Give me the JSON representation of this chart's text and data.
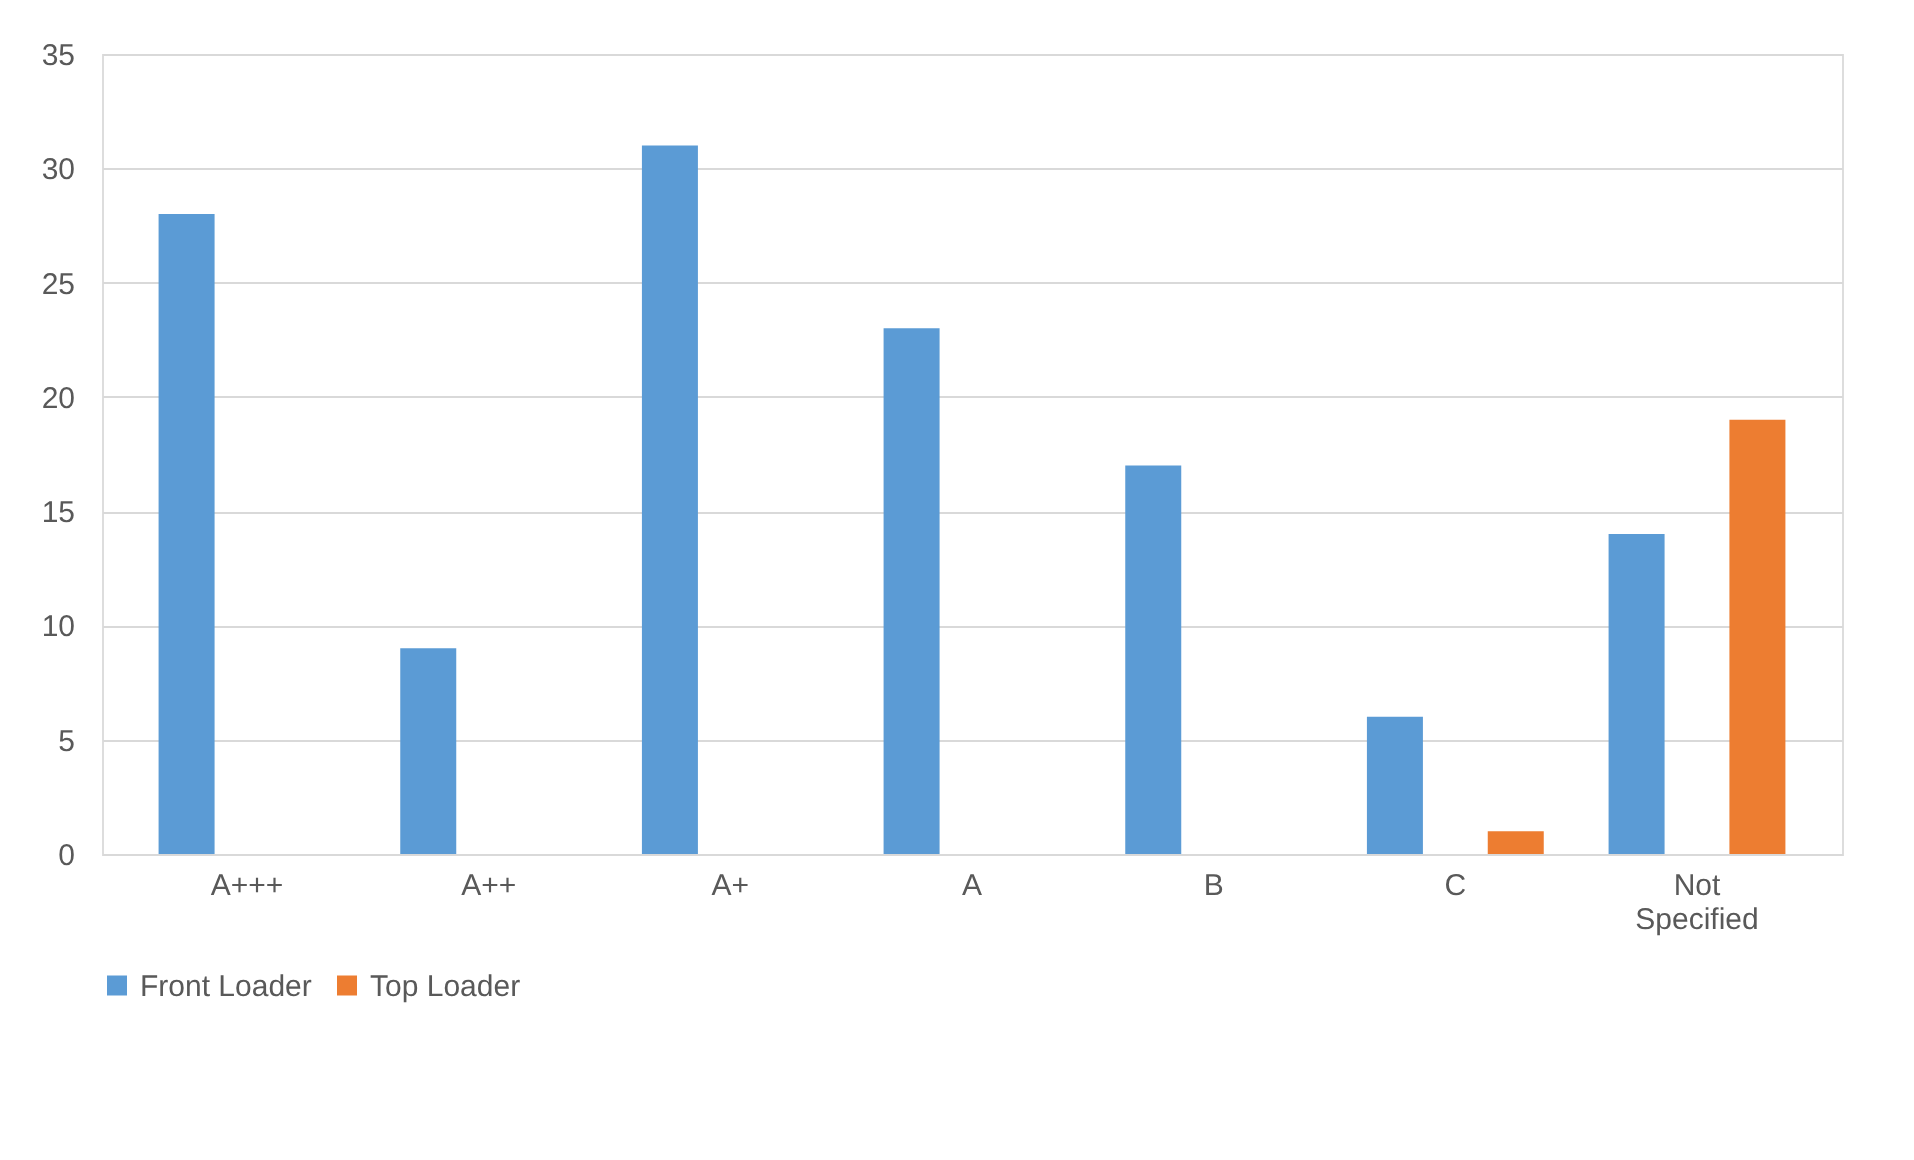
{
  "chart_data": {
    "type": "bar",
    "categories": [
      "A+++",
      "A++",
      "A+",
      "A",
      "B",
      "C",
      "Not Specified"
    ],
    "series": [
      {
        "name": "Front Loader",
        "color": "#5b9bd5",
        "values": [
          28,
          9,
          31,
          23,
          17,
          6,
          14
        ]
      },
      {
        "name": "Top Loader",
        "color": "#ed7d31",
        "values": [
          0,
          0,
          0,
          0,
          0,
          1,
          19
        ]
      }
    ],
    "ylim": [
      0,
      35
    ],
    "yticks": [
      0,
      5,
      10,
      15,
      20,
      25,
      30,
      35
    ],
    "grid": "y",
    "legend": "bottom"
  }
}
